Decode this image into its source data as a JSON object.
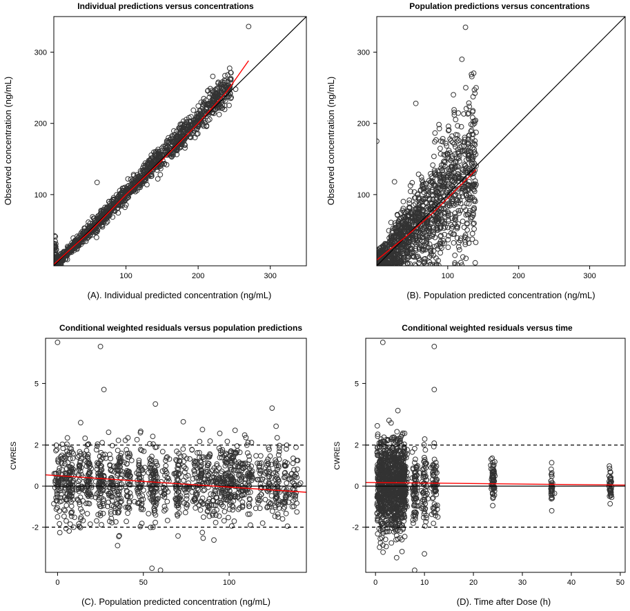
{
  "colors": {
    "points": "#333333",
    "identity": "#000000",
    "loess": "#ff0000",
    "refline": "#000000"
  },
  "chart_data": [
    {
      "id": "A",
      "type": "scatter",
      "title": "Individual predictions versus concentrations",
      "xlabel": "(A). Individual predicted concentration (ng/mL)",
      "ylabel": "Observed concentration (ng/mL)",
      "xlim": [
        0,
        350
      ],
      "ylim": [
        0,
        350
      ],
      "xticks": [
        100,
        200,
        300
      ],
      "yticks": [
        100,
        200,
        300
      ],
      "xtick_labels": [
        "100",
        "200",
        "300"
      ],
      "ytick_labels": [
        "100",
        "200",
        "300"
      ],
      "identity_line": true,
      "smooth_line": [
        [
          0,
          2
        ],
        [
          50,
          48
        ],
        [
          100,
          100
        ],
        [
          150,
          148
        ],
        [
          200,
          200
        ],
        [
          240,
          245
        ],
        [
          270,
          288
        ]
      ],
      "n_points": 1400,
      "sample_points": [
        [
          5,
          4
        ],
        [
          40,
          45
        ],
        [
          60,
          117
        ],
        [
          90,
          85
        ],
        [
          120,
          130
        ],
        [
          180,
          175
        ],
        [
          220,
          240
        ],
        [
          252,
          248
        ],
        [
          270,
          336
        ]
      ]
    },
    {
      "id": "B",
      "type": "scatter",
      "title": "Population predictions versus concentrations",
      "xlabel": "(B). Population predicted concentration (ng/mL)",
      "ylabel": "Observed concentration (ng/mL)",
      "xlim": [
        0,
        350
      ],
      "ylim": [
        0,
        350
      ],
      "xticks": [
        100,
        200,
        300
      ],
      "yticks": [
        100,
        200,
        300
      ],
      "xtick_labels": [
        "100",
        "200",
        "300"
      ],
      "ytick_labels": [
        "100",
        "200",
        "300"
      ],
      "identity_line": true,
      "smooth_line": [
        [
          0,
          8
        ],
        [
          40,
          40
        ],
        [
          80,
          75
        ],
        [
          110,
          105
        ],
        [
          140,
          135
        ]
      ],
      "n_points": 1400,
      "sample_points": [
        [
          0,
          175
        ],
        [
          25,
          118
        ],
        [
          55,
          228
        ],
        [
          120,
          290
        ],
        [
          125,
          335
        ],
        [
          140,
          250
        ]
      ]
    },
    {
      "id": "C",
      "type": "scatter",
      "title": "Conditional weighted residuals versus population predictions",
      "xlabel": "(C). Population predicted concentration (ng/mL)",
      "ylabel": "CWRES",
      "xlim": [
        -7,
        145
      ],
      "ylim": [
        -4.2,
        7.2
      ],
      "xticks": [
        0,
        50,
        100
      ],
      "yticks": [
        -2,
        0,
        2,
        5
      ],
      "xtick_labels": [
        "0",
        "50",
        "100"
      ],
      "ytick_labels": [
        "-2",
        "0",
        "2",
        "5"
      ],
      "ref_lines": [
        {
          "y": 0,
          "style": "solid"
        },
        {
          "y": 2,
          "style": "dashed"
        },
        {
          "y": -2,
          "style": "dashed"
        }
      ],
      "smooth_line": [
        [
          -7,
          0.55
        ],
        [
          145,
          -0.3
        ]
      ],
      "n_points": 1400,
      "sample_points": [
        [
          0,
          7.0
        ],
        [
          25,
          6.8
        ],
        [
          27,
          4.7
        ],
        [
          57,
          4.0
        ],
        [
          35,
          -2.9
        ],
        [
          55,
          -4.0
        ],
        [
          60,
          -4.1
        ],
        [
          125,
          3.8
        ]
      ]
    },
    {
      "id": "D",
      "type": "scatter",
      "title": "Conditional weighted residuals versus time",
      "xlabel": "(D). Time after Dose (h)",
      "ylabel": "CWRES",
      "xlim": [
        -2,
        51
      ],
      "ylim": [
        -4.2,
        7.2
      ],
      "xticks": [
        0,
        10,
        20,
        30,
        40,
        50
      ],
      "yticks": [
        -2,
        0,
        2,
        5
      ],
      "xtick_labels": [
        "0",
        "10",
        "20",
        "30",
        "40",
        "50"
      ],
      "ytick_labels": [
        "-2",
        "0",
        "2",
        "5"
      ],
      "ref_lines": [
        {
          "y": 0,
          "style": "solid"
        },
        {
          "y": 2,
          "style": "dashed"
        },
        {
          "y": -2,
          "style": "dashed"
        }
      ],
      "smooth_line": [
        [
          -2,
          0.18
        ],
        [
          51,
          0.05
        ]
      ],
      "n_points": 1400,
      "sample_points": [
        [
          1.5,
          7.0
        ],
        [
          12,
          6.8
        ],
        [
          12,
          4.7
        ],
        [
          8,
          -4.1
        ],
        [
          10,
          -3.3
        ],
        [
          36,
          -1.2
        ]
      ]
    }
  ]
}
